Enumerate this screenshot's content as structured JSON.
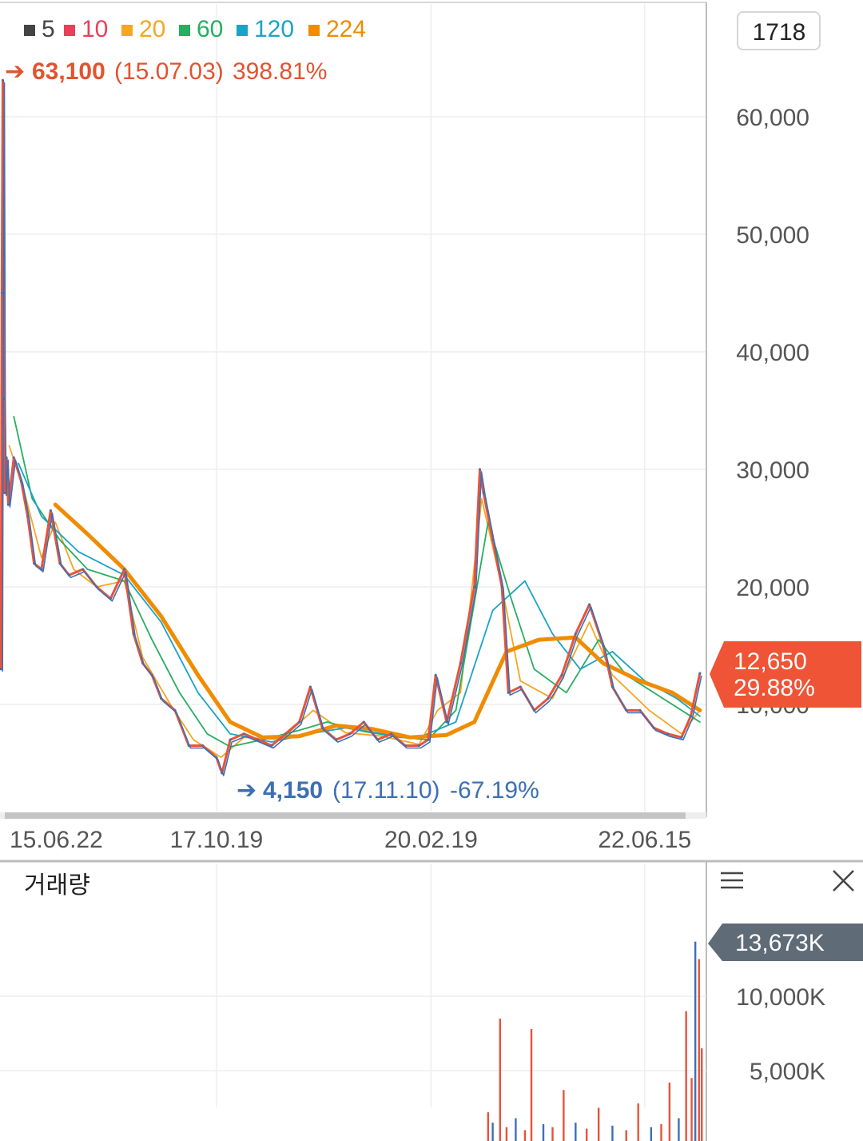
{
  "legend": [
    {
      "label": "5",
      "color": "#444444"
    },
    {
      "label": "10",
      "color": "#e8405a"
    },
    {
      "label": "20",
      "color": "#f5a623"
    },
    {
      "label": "60",
      "color": "#27ae60"
    },
    {
      "label": "120",
      "color": "#1aa3c8"
    },
    {
      "label": "224",
      "color": "#f08c00"
    }
  ],
  "toolbar": {
    "count_badge": "1718"
  },
  "price_chart": {
    "high_marker": {
      "value": "63,100",
      "date": "(15.07.03)",
      "pct": "398.81%",
      "color": "#e2532f"
    },
    "low_marker": {
      "value": "4,150",
      "date": "(17.11.10)",
      "pct": "-67.19%",
      "color": "#3d6fb4"
    },
    "current": {
      "price": "12,650",
      "change": "29.88%",
      "color": "#ee5435"
    }
  },
  "volume_panel": {
    "title": "거래량",
    "current": "13,673K",
    "menu_icon": "menu-icon",
    "close_icon": "close-icon"
  },
  "chart_data": [
    {
      "type": "line",
      "ylim": [
        2800,
        64000
      ],
      "yticks": [
        {
          "value": 60000,
          "label": "60,000"
        },
        {
          "value": 50000,
          "label": "50,000"
        },
        {
          "value": 40000,
          "label": "40,000"
        },
        {
          "value": 30000,
          "label": "30,000"
        },
        {
          "value": 20000,
          "label": "20,000"
        },
        {
          "value": 10000,
          "label": "10,000"
        }
      ],
      "xlim": [
        2015.45,
        2023.12
      ],
      "xticks": [
        {
          "value": 2015.47,
          "label": "15.06.22"
        },
        {
          "value": 2017.8,
          "label": "17.10.19"
        },
        {
          "value": 2020.13,
          "label": "20.02.19"
        },
        {
          "value": 2022.45,
          "label": "22.06.15"
        }
      ],
      "candles": [
        {
          "x": 2015.46,
          "y": 13000
        },
        {
          "x": 2015.47,
          "y": 45000
        },
        {
          "x": 2015.48,
          "y": 63100
        },
        {
          "x": 2015.49,
          "y": 36000
        },
        {
          "x": 2015.5,
          "y": 28000
        },
        {
          "x": 2015.52,
          "y": 31000
        },
        {
          "x": 2015.54,
          "y": 27000
        },
        {
          "x": 2015.6,
          "y": 31000
        },
        {
          "x": 2015.68,
          "y": 29000
        },
        {
          "x": 2015.75,
          "y": 26000
        },
        {
          "x": 2015.82,
          "y": 22000
        },
        {
          "x": 2015.9,
          "y": 21500
        },
        {
          "x": 2016.0,
          "y": 26500
        },
        {
          "x": 2016.1,
          "y": 22000
        },
        {
          "x": 2016.2,
          "y": 21000
        },
        {
          "x": 2016.35,
          "y": 21500
        },
        {
          "x": 2016.5,
          "y": 20000
        },
        {
          "x": 2016.65,
          "y": 19000
        },
        {
          "x": 2016.8,
          "y": 21500
        },
        {
          "x": 2016.9,
          "y": 16000
        },
        {
          "x": 2017.0,
          "y": 13500
        },
        {
          "x": 2017.1,
          "y": 12500
        },
        {
          "x": 2017.2,
          "y": 10500
        },
        {
          "x": 2017.35,
          "y": 9500
        },
        {
          "x": 2017.5,
          "y": 6500
        },
        {
          "x": 2017.65,
          "y": 6500
        },
        {
          "x": 2017.8,
          "y": 5500
        },
        {
          "x": 2017.86,
          "y": 4150
        },
        {
          "x": 2017.95,
          "y": 7000
        },
        {
          "x": 2018.1,
          "y": 7500
        },
        {
          "x": 2018.25,
          "y": 7000
        },
        {
          "x": 2018.4,
          "y": 6500
        },
        {
          "x": 2018.55,
          "y": 7500
        },
        {
          "x": 2018.7,
          "y": 8500
        },
        {
          "x": 2018.82,
          "y": 11500
        },
        {
          "x": 2018.95,
          "y": 8000
        },
        {
          "x": 2019.1,
          "y": 7000
        },
        {
          "x": 2019.25,
          "y": 7500
        },
        {
          "x": 2019.4,
          "y": 8500
        },
        {
          "x": 2019.55,
          "y": 7000
        },
        {
          "x": 2019.7,
          "y": 7500
        },
        {
          "x": 2019.85,
          "y": 6500
        },
        {
          "x": 2020.0,
          "y": 6500
        },
        {
          "x": 2020.1,
          "y": 7000
        },
        {
          "x": 2020.18,
          "y": 12500
        },
        {
          "x": 2020.3,
          "y": 8500
        },
        {
          "x": 2020.45,
          "y": 13500
        },
        {
          "x": 2020.6,
          "y": 20000
        },
        {
          "x": 2020.66,
          "y": 30000
        },
        {
          "x": 2020.7,
          "y": 28000
        },
        {
          "x": 2020.8,
          "y": 24000
        },
        {
          "x": 2020.9,
          "y": 20000
        },
        {
          "x": 2020.97,
          "y": 11000
        },
        {
          "x": 2021.1,
          "y": 11500
        },
        {
          "x": 2021.25,
          "y": 9500
        },
        {
          "x": 2021.4,
          "y": 10500
        },
        {
          "x": 2021.55,
          "y": 12500
        },
        {
          "x": 2021.7,
          "y": 16000
        },
        {
          "x": 2021.85,
          "y": 18500
        },
        {
          "x": 2022.0,
          "y": 15000
        },
        {
          "x": 2022.1,
          "y": 11500
        },
        {
          "x": 2022.25,
          "y": 9500
        },
        {
          "x": 2022.4,
          "y": 9500
        },
        {
          "x": 2022.55,
          "y": 8000
        },
        {
          "x": 2022.7,
          "y": 7500
        },
        {
          "x": 2022.85,
          "y": 7200
        },
        {
          "x": 2022.95,
          "y": 9000
        },
        {
          "x": 2023.05,
          "y": 12650
        }
      ],
      "series": [
        {
          "name": "20",
          "color": "#f5a623",
          "points": [
            {
              "x": 2015.55,
              "y": 32000
            },
            {
              "x": 2015.7,
              "y": 28500
            },
            {
              "x": 2015.9,
              "y": 22500
            },
            {
              "x": 2016.05,
              "y": 25500
            },
            {
              "x": 2016.25,
              "y": 21500
            },
            {
              "x": 2016.5,
              "y": 20000
            },
            {
              "x": 2016.8,
              "y": 20500
            },
            {
              "x": 2017.0,
              "y": 14000
            },
            {
              "x": 2017.3,
              "y": 10000
            },
            {
              "x": 2017.55,
              "y": 7000
            },
            {
              "x": 2017.85,
              "y": 5500
            },
            {
              "x": 2018.1,
              "y": 7200
            },
            {
              "x": 2018.5,
              "y": 7000
            },
            {
              "x": 2018.85,
              "y": 9500
            },
            {
              "x": 2019.2,
              "y": 7600
            },
            {
              "x": 2019.6,
              "y": 7300
            },
            {
              "x": 2020.0,
              "y": 6600
            },
            {
              "x": 2020.2,
              "y": 9500
            },
            {
              "x": 2020.45,
              "y": 11000
            },
            {
              "x": 2020.68,
              "y": 27500
            },
            {
              "x": 2020.9,
              "y": 20000
            },
            {
              "x": 2021.1,
              "y": 12000
            },
            {
              "x": 2021.45,
              "y": 10500
            },
            {
              "x": 2021.85,
              "y": 17000
            },
            {
              "x": 2022.1,
              "y": 12500
            },
            {
              "x": 2022.5,
              "y": 9500
            },
            {
              "x": 2022.85,
              "y": 7500
            },
            {
              "x": 2023.05,
              "y": 9500
            }
          ]
        },
        {
          "name": "60",
          "color": "#27ae60",
          "points": [
            {
              "x": 2015.6,
              "y": 34500
            },
            {
              "x": 2015.8,
              "y": 27500
            },
            {
              "x": 2016.1,
              "y": 24000
            },
            {
              "x": 2016.4,
              "y": 21500
            },
            {
              "x": 2016.8,
              "y": 20500
            },
            {
              "x": 2017.1,
              "y": 15500
            },
            {
              "x": 2017.4,
              "y": 11000
            },
            {
              "x": 2017.7,
              "y": 7500
            },
            {
              "x": 2017.95,
              "y": 6400
            },
            {
              "x": 2018.3,
              "y": 7000
            },
            {
              "x": 2018.7,
              "y": 7800
            },
            {
              "x": 2019.0,
              "y": 8500
            },
            {
              "x": 2019.4,
              "y": 7700
            },
            {
              "x": 2019.8,
              "y": 7200
            },
            {
              "x": 2020.1,
              "y": 7000
            },
            {
              "x": 2020.4,
              "y": 9500
            },
            {
              "x": 2020.75,
              "y": 25500
            },
            {
              "x": 2021.0,
              "y": 19000
            },
            {
              "x": 2021.25,
              "y": 13000
            },
            {
              "x": 2021.6,
              "y": 11000
            },
            {
              "x": 2021.95,
              "y": 15500
            },
            {
              "x": 2022.25,
              "y": 12500
            },
            {
              "x": 2022.65,
              "y": 10500
            },
            {
              "x": 2023.05,
              "y": 8500
            }
          ]
        },
        {
          "name": "120",
          "color": "#1aa3c8",
          "points": [
            {
              "x": 2015.65,
              "y": 30500
            },
            {
              "x": 2015.9,
              "y": 26000
            },
            {
              "x": 2016.3,
              "y": 23000
            },
            {
              "x": 2016.8,
              "y": 21000
            },
            {
              "x": 2017.2,
              "y": 17000
            },
            {
              "x": 2017.6,
              "y": 11000
            },
            {
              "x": 2017.95,
              "y": 7500
            },
            {
              "x": 2018.4,
              "y": 6800
            },
            {
              "x": 2018.8,
              "y": 7500
            },
            {
              "x": 2019.2,
              "y": 8000
            },
            {
              "x": 2019.6,
              "y": 7500
            },
            {
              "x": 2020.0,
              "y": 7200
            },
            {
              "x": 2020.4,
              "y": 8500
            },
            {
              "x": 2020.8,
              "y": 18000
            },
            {
              "x": 2021.15,
              "y": 20500
            },
            {
              "x": 2021.45,
              "y": 16000
            },
            {
              "x": 2021.75,
              "y": 13000
            },
            {
              "x": 2022.1,
              "y": 14500
            },
            {
              "x": 2022.45,
              "y": 12000
            },
            {
              "x": 2022.8,
              "y": 10500
            },
            {
              "x": 2023.05,
              "y": 9000
            }
          ]
        },
        {
          "name": "224",
          "color": "#f08c00",
          "points": [
            {
              "x": 2016.05,
              "y": 27000
            },
            {
              "x": 2016.4,
              "y": 24500
            },
            {
              "x": 2016.8,
              "y": 21500
            },
            {
              "x": 2017.2,
              "y": 17500
            },
            {
              "x": 2017.6,
              "y": 12500
            },
            {
              "x": 2017.95,
              "y": 8500
            },
            {
              "x": 2018.3,
              "y": 7200
            },
            {
              "x": 2018.7,
              "y": 7300
            },
            {
              "x": 2019.1,
              "y": 8200
            },
            {
              "x": 2019.5,
              "y": 7900
            },
            {
              "x": 2019.9,
              "y": 7200
            },
            {
              "x": 2020.3,
              "y": 7400
            },
            {
              "x": 2020.6,
              "y": 8500
            },
            {
              "x": 2020.95,
              "y": 14500
            },
            {
              "x": 2021.3,
              "y": 15500
            },
            {
              "x": 2021.7,
              "y": 15700
            },
            {
              "x": 2022.0,
              "y": 13500
            },
            {
              "x": 2022.4,
              "y": 12000
            },
            {
              "x": 2022.75,
              "y": 11000
            },
            {
              "x": 2023.05,
              "y": 9500
            }
          ]
        }
      ]
    },
    {
      "type": "bar",
      "ylim": [
        0,
        15000
      ],
      "yticks": [
        {
          "value": 10000,
          "label": "10,000K"
        },
        {
          "value": 5000,
          "label": "5,000K"
        }
      ],
      "bars": [
        {
          "x": 2020.75,
          "value": 2200
        },
        {
          "x": 2020.8,
          "value": 1500
        },
        {
          "x": 2020.88,
          "value": 8500
        },
        {
          "x": 2020.95,
          "value": 1200
        },
        {
          "x": 2021.05,
          "value": 1800
        },
        {
          "x": 2021.15,
          "value": 1000
        },
        {
          "x": 2021.22,
          "value": 7800
        },
        {
          "x": 2021.35,
          "value": 1400
        },
        {
          "x": 2021.45,
          "value": 1200
        },
        {
          "x": 2021.57,
          "value": 3700
        },
        {
          "x": 2021.7,
          "value": 1500
        },
        {
          "x": 2021.82,
          "value": 1100
        },
        {
          "x": 2021.95,
          "value": 2500
        },
        {
          "x": 2022.1,
          "value": 1300
        },
        {
          "x": 2022.25,
          "value": 1000
        },
        {
          "x": 2022.38,
          "value": 2800
        },
        {
          "x": 2022.52,
          "value": 1200
        },
        {
          "x": 2022.63,
          "value": 1400
        },
        {
          "x": 2022.72,
          "value": 4200
        },
        {
          "x": 2022.82,
          "value": 1800
        },
        {
          "x": 2022.9,
          "value": 9000
        },
        {
          "x": 2022.96,
          "value": 4500
        },
        {
          "x": 2023.0,
          "value": 13673
        },
        {
          "x": 2023.04,
          "value": 12500
        },
        {
          "x": 2023.07,
          "value": 6500
        }
      ]
    }
  ]
}
